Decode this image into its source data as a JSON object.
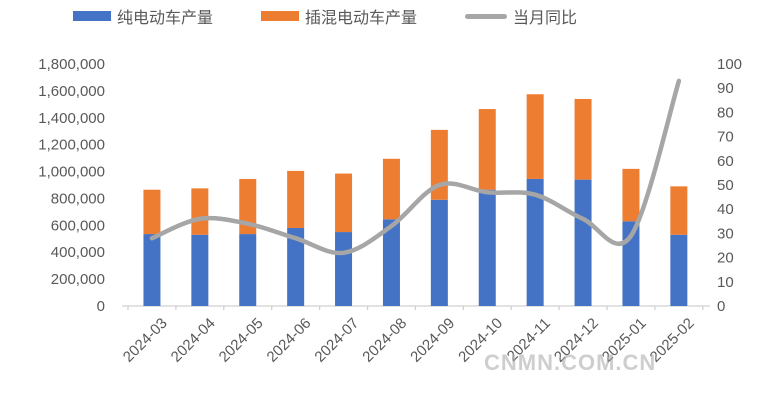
{
  "legend": {
    "items": [
      {
        "label": "纯电动车产量",
        "color": "#4472C4",
        "marker": "bar"
      },
      {
        "label": "插混电动车产量",
        "color": "#ED7D31",
        "marker": "bar"
      },
      {
        "label": "当月同比",
        "color": "#A6A6A6",
        "marker": "line"
      }
    ]
  },
  "watermark": "CNMN.COM.CN",
  "colors": {
    "bev_bar": "#4472C4",
    "phev_bar": "#ED7D31",
    "yoy_line": "#A6A6A6",
    "axis_text": "#595959",
    "axis_line": "#D0D0D0",
    "watermark": "#A5A5A5"
  },
  "chart_data": {
    "type": "bar",
    "subtype": "stacked-bars-with-secondary-axis-line",
    "title": "",
    "xlabel": "",
    "ylabel": "",
    "grid": false,
    "legend_position": "top",
    "categories": [
      "2024-03",
      "2024-04",
      "2024-05",
      "2024-06",
      "2024-07",
      "2024-08",
      "2024-09",
      "2024-10",
      "2024-11",
      "2024-12",
      "2025-01",
      "2025-02"
    ],
    "series": [
      {
        "name": "纯电动车产量",
        "type": "bar",
        "stack": "production",
        "axis": "left",
        "color": "#4472C4",
        "values": [
          535000,
          530000,
          535000,
          580000,
          550000,
          645000,
          790000,
          865000,
          945000,
          940000,
          630000,
          530000
        ]
      },
      {
        "name": "插混电动车产量",
        "type": "bar",
        "stack": "production",
        "axis": "left",
        "color": "#ED7D31",
        "values": [
          330000,
          345000,
          410000,
          425000,
          435000,
          450000,
          520000,
          600000,
          630000,
          600000,
          390000,
          360000
        ]
      },
      {
        "name": "当月同比",
        "type": "line",
        "smooth": true,
        "axis": "right",
        "color": "#A6A6A6",
        "values": [
          28,
          36,
          34,
          28,
          22,
          33,
          50,
          47,
          46,
          36,
          29,
          93
        ]
      }
    ],
    "left_axis": {
      "min": 0,
      "max": 1800000,
      "step": 200000,
      "tick_labels": [
        "0",
        "200,000",
        "400,000",
        "600,000",
        "800,000",
        "1,000,000",
        "1,200,000",
        "1,400,000",
        "1,600,000",
        "1,800,000"
      ]
    },
    "right_axis": {
      "min": 0,
      "max": 100,
      "step": 10,
      "tick_labels": [
        "0",
        "10",
        "20",
        "30",
        "40",
        "50",
        "60",
        "70",
        "80",
        "90",
        "100"
      ]
    }
  }
}
